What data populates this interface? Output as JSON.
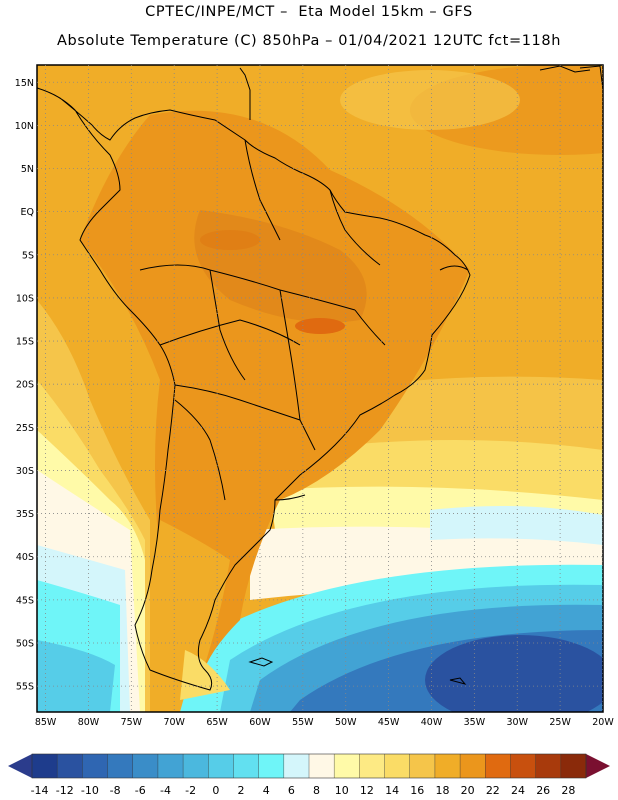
{
  "header": {
    "line1": "CPTEC/INPE/MCT –  Eta Model 15km – GFS",
    "line2": "Absolute Temperature (C) 850hPa – 01/04/2021 12UTC fct=118h"
  },
  "map": {
    "lat_labels": [
      "15N",
      "10N",
      "5N",
      "EQ",
      "5S",
      "10S",
      "15S",
      "20S",
      "25S",
      "30S",
      "35S",
      "40S",
      "45S",
      "50S",
      "55S"
    ],
    "lat_values": [
      15,
      10,
      5,
      0,
      -5,
      -10,
      -15,
      -20,
      -25,
      -30,
      -35,
      -40,
      -45,
      -50,
      -55
    ],
    "lon_labels": [
      "85W",
      "80W",
      "75W",
      "70W",
      "65W",
      "60W",
      "55W",
      "50W",
      "45W",
      "40W",
      "35W",
      "30W",
      "25W",
      "20W"
    ],
    "lon_values": [
      -85,
      -80,
      -75,
      -70,
      -65,
      -60,
      -55,
      -50,
      -45,
      -40,
      -35,
      -30,
      -25,
      -20
    ],
    "lat_range": [
      -58,
      17
    ],
    "lon_range": [
      -86,
      -20
    ]
  },
  "colorbar": {
    "labels": [
      "-14",
      "-12",
      "-10",
      "-8",
      "-6",
      "-4",
      "-2",
      "0",
      "2",
      "4",
      "6",
      "8",
      "10",
      "12",
      "14",
      "16",
      "18",
      "20",
      "22",
      "24",
      "26",
      "28"
    ],
    "colors": [
      "#1e3c8c",
      "#2a52a0",
      "#2f66b2",
      "#3479bd",
      "#3a8dc8",
      "#42a3d4",
      "#4bb8de",
      "#56cde8",
      "#62e0f0",
      "#6ff5f8",
      "#d4f6fb",
      "#fff8e6",
      "#fffaa8",
      "#fdea84",
      "#fadc66",
      "#f5c54a",
      "#f0ad28",
      "#eb961c",
      "#e06a10",
      "#c8500e",
      "#a83a0c",
      "#8a2a0a"
    ],
    "low_color": "#2b3c8c",
    "high_color": "#7a1030"
  }
}
